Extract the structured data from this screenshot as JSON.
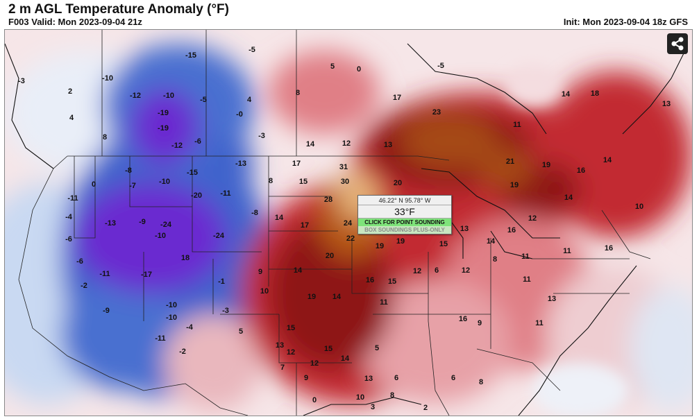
{
  "header": {
    "title": "2 m AGL Temperature Anomaly (°F)",
    "valid": "F003 Valid: Mon 2023-09-04 21z",
    "init": "Init: Mon 2023-09-04 18z GFS"
  },
  "share": {
    "icon": "share-icon"
  },
  "popup": {
    "coords": "46.22° N 95.78° W",
    "temp": "33°F",
    "point_sounding": "CLICK FOR POINT SOUNDING",
    "box_soundings": "BOX SOUNDINGS PLUS-ONLY"
  },
  "colors": {
    "cold_strong": "#6a2bd0",
    "cold": "#3f63cc",
    "cool": "#a9c5ee",
    "neutral": "#f4e2e4",
    "warm": "#e07f86",
    "hot": "#c22a33",
    "very_hot": "#8e1418",
    "extreme": "#b85a16",
    "peak": "#e6b47a"
  },
  "map_labels": [
    {
      "text": "-5"
    },
    {
      "text": "-15"
    },
    {
      "text": "-10"
    },
    {
      "text": "-3"
    },
    {
      "text": "0"
    },
    {
      "text": "2"
    },
    {
      "text": "-12"
    },
    {
      "text": "-10"
    },
    {
      "text": "-5"
    },
    {
      "text": "4"
    },
    {
      "text": "-19"
    },
    {
      "text": "-19"
    },
    {
      "text": "-0"
    },
    {
      "text": "4"
    },
    {
      "text": "8"
    },
    {
      "text": "-12"
    },
    {
      "text": "-6"
    },
    {
      "text": "-3"
    },
    {
      "text": "8"
    },
    {
      "text": "5"
    },
    {
      "text": "-5"
    },
    {
      "text": "17"
    },
    {
      "text": "23"
    },
    {
      "text": "14"
    },
    {
      "text": "12"
    },
    {
      "text": "13"
    },
    {
      "text": "14"
    },
    {
      "text": "18"
    },
    {
      "text": "13"
    },
    {
      "text": "11"
    },
    {
      "text": "-8"
    },
    {
      "text": "-15"
    },
    {
      "text": "-13"
    },
    {
      "text": "17"
    },
    {
      "text": "31"
    },
    {
      "text": "21"
    },
    {
      "text": "19"
    },
    {
      "text": "16"
    },
    {
      "text": "14"
    },
    {
      "text": "0"
    },
    {
      "text": "-7"
    },
    {
      "text": "-10"
    },
    {
      "text": "8"
    },
    {
      "text": "15"
    },
    {
      "text": "30"
    },
    {
      "text": "20"
    },
    {
      "text": "19"
    },
    {
      "text": "14"
    },
    {
      "text": "-11"
    },
    {
      "text": "-20"
    },
    {
      "text": "-11"
    },
    {
      "text": "28"
    },
    {
      "text": "-4"
    },
    {
      "text": "-13"
    },
    {
      "text": "-9"
    },
    {
      "text": "-24"
    },
    {
      "text": "-8"
    },
    {
      "text": "14"
    },
    {
      "text": "17"
    },
    {
      "text": "24"
    },
    {
      "text": "13"
    },
    {
      "text": "16"
    },
    {
      "text": "12"
    },
    {
      "text": "10"
    },
    {
      "text": "-6"
    },
    {
      "text": "-10"
    },
    {
      "text": "-24"
    },
    {
      "text": "22"
    },
    {
      "text": "19"
    },
    {
      "text": "19"
    },
    {
      "text": "15"
    },
    {
      "text": "14"
    },
    {
      "text": "-6"
    },
    {
      "text": "18"
    },
    {
      "text": "20"
    },
    {
      "text": "11"
    },
    {
      "text": "16"
    },
    {
      "text": "11"
    },
    {
      "text": "-11"
    },
    {
      "text": "-17"
    },
    {
      "text": "-1"
    },
    {
      "text": "9"
    },
    {
      "text": "14"
    },
    {
      "text": "16"
    },
    {
      "text": "15"
    },
    {
      "text": "12"
    },
    {
      "text": "6"
    },
    {
      "text": "12"
    },
    {
      "text": "8"
    },
    {
      "text": "11"
    },
    {
      "text": "-2"
    },
    {
      "text": "10"
    },
    {
      "text": "19"
    },
    {
      "text": "14"
    },
    {
      "text": "11"
    },
    {
      "text": "13"
    },
    {
      "text": "-9"
    },
    {
      "text": "-10"
    },
    {
      "text": "-3"
    },
    {
      "text": "16"
    },
    {
      "text": "9"
    },
    {
      "text": "11"
    },
    {
      "text": "-10"
    },
    {
      "text": "-4"
    },
    {
      "text": "5"
    },
    {
      "text": "15"
    },
    {
      "text": "13"
    },
    {
      "text": "12"
    },
    {
      "text": "15"
    },
    {
      "text": "-11"
    },
    {
      "text": "-2"
    },
    {
      "text": "7"
    },
    {
      "text": "12"
    },
    {
      "text": "14"
    },
    {
      "text": "9"
    },
    {
      "text": "5"
    },
    {
      "text": "13"
    },
    {
      "text": "6"
    },
    {
      "text": "0"
    },
    {
      "text": "10"
    },
    {
      "text": "3"
    },
    {
      "text": "8"
    },
    {
      "text": "2"
    },
    {
      "text": "6"
    },
    {
      "text": "8"
    }
  ]
}
